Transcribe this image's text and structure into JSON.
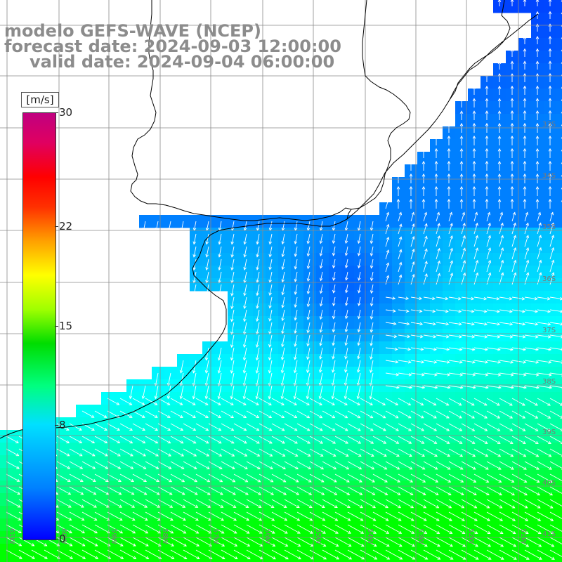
{
  "title": {
    "line1": "modelo GEFS-WAVE (NCEP)",
    "line2": "forecast date: 2024-09-03 12:00:00",
    "line3": "valid date: 2024-09-04 06:00:00"
  },
  "colorbar": {
    "unit": "[m/s]",
    "min": 0,
    "max": 30,
    "ticks": [
      {
        "label": "30",
        "value": 30
      },
      {
        "label": "22",
        "value": 22
      },
      {
        "label": "15",
        "value": 15
      },
      {
        "label": "8",
        "value": 8
      },
      {
        "label": "0",
        "value": 0
      }
    ],
    "colors": [
      "#0000ff",
      "#0080ff",
      "#00e0ff",
      "#00ff80",
      "#00dd00",
      "#a0ff00",
      "#ffff00",
      "#ffa000",
      "#ff3000",
      "#ff0000",
      "#c00080"
    ]
  },
  "map": {
    "background": "#ffffff",
    "coastline_color": "#000000",
    "grid_color": "#8a8a8a",
    "arrow_color": "#ffffff",
    "lon_labels": [
      "61W",
      "60W",
      "59W",
      "58W",
      "57W",
      "56W",
      "55W",
      "54W",
      "53W",
      "52W",
      "51W"
    ],
    "lat_labels": [
      "33S",
      "34S",
      "35S",
      "36S",
      "37S",
      "38S",
      "39S",
      "40S",
      "41S"
    ]
  }
}
